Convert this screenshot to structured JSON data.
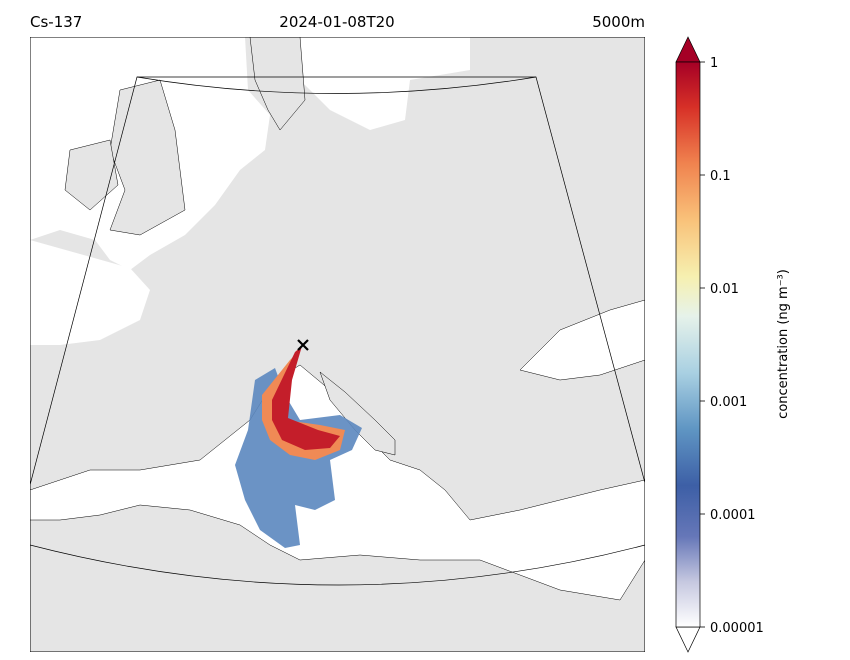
{
  "header": {
    "left": "Cs-137",
    "center": "2024-01-08T20",
    "right": "5000m"
  },
  "colorbar": {
    "label": "concentration (ng m⁻³)",
    "scale": "log",
    "lim": [
      1e-05,
      1
    ],
    "ticks": [
      1,
      0.1,
      0.01,
      0.001,
      0.0001,
      1e-05
    ]
  }
}
